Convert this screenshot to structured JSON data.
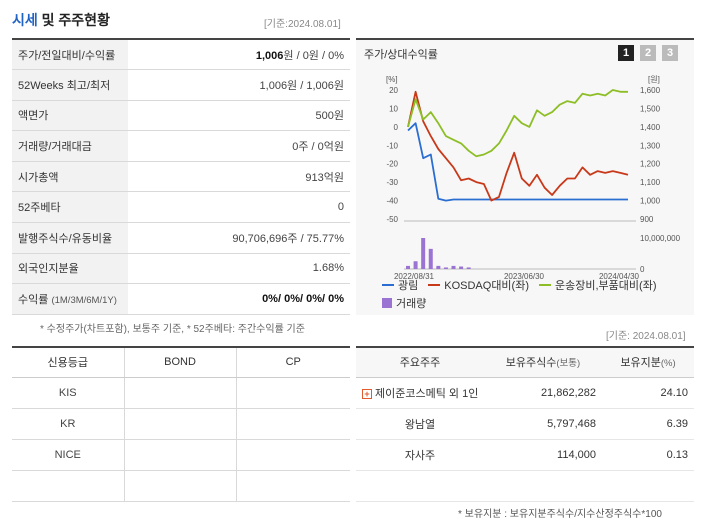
{
  "section": {
    "title_accent": "시세",
    "title_rest": " 및 주주현황",
    "base_date": "[기준:2024.08.01]"
  },
  "price_rows": [
    {
      "label": "주가/전일대비/수익률",
      "value_bold": "1,006",
      "value_rest": "원 / 0원 / 0%"
    },
    {
      "label": "52Weeks 최고/최저",
      "value_bold": "",
      "value_rest": "1,006원 / 1,006원"
    },
    {
      "label": "액면가",
      "value_bold": "",
      "value_rest": "500원"
    },
    {
      "label": "거래량/거래대금",
      "value_bold": "",
      "value_rest": "0주 / 0억원"
    },
    {
      "label": "시가총액",
      "value_bold": "",
      "value_rest": "913억원"
    },
    {
      "label": "52주베타",
      "value_bold": "",
      "value_rest": "0"
    },
    {
      "label": "발행주식수/유동비율",
      "value_bold": "",
      "value_rest": "90,706,696주 / 75.77%"
    },
    {
      "label": "외국인지분율",
      "value_bold": "",
      "value_rest": "1.68%"
    },
    {
      "label": "수익률",
      "label_small": "(1M/3M/6M/1Y)",
      "value_bold": "0%/ 0%/ 0%/ 0%",
      "value_rest": ""
    }
  ],
  "note_left": "* 수정주가(차트포함), 보통주 기준, * 52주베타: 주간수익률 기준",
  "note_right": "[기준: 2024.08.01]",
  "chart": {
    "title": "주가/상대수익률",
    "tabs": [
      "1",
      "2",
      "3"
    ],
    "active_tab": 0
  },
  "chart_data": {
    "type": "line",
    "left_axis_unit": "[%]",
    "right_axis_unit": "[원]",
    "left_ticks": [
      20,
      10,
      0,
      -10,
      -20,
      -30,
      -40,
      -50
    ],
    "right_ticks": [
      "1,600",
      "1,500",
      "1,400",
      "1,300",
      "1,200",
      "1,100",
      "1,000",
      "900"
    ],
    "volume_ticks": [
      "10,000,000",
      "0"
    ],
    "x_labels": [
      "2022/08/31",
      "2023/06/30",
      "2024/04/30"
    ],
    "ylim_left": [
      -50,
      20
    ],
    "ylim_right": [
      900,
      1600
    ],
    "series": [
      {
        "name": "광림",
        "color": "#2a6ed1",
        "axis": "right",
        "values": [
          1380,
          1420,
          1230,
          1250,
          1010,
          1000,
          1006,
          1006,
          1006,
          1006,
          1006,
          1006,
          1006,
          1006,
          1006,
          1006,
          1006,
          1006,
          1006,
          1006,
          1006,
          1006,
          1006,
          1006,
          1006,
          1006,
          1006,
          1006,
          1006,
          1006
        ]
      },
      {
        "name": "KOSDAQ대비(좌)",
        "color": "#c8391a",
        "axis": "left",
        "values": [
          0,
          19,
          3,
          -5,
          -12,
          -17,
          -22,
          -29,
          -28,
          -30,
          -31,
          -40,
          -38,
          -25,
          -14,
          -28,
          -32,
          -26,
          -33,
          -37,
          -32,
          -28,
          -28,
          -22,
          -26,
          -24,
          -25,
          -24,
          -25,
          -26
        ]
      },
      {
        "name": "운송장비,부품대비(좌)",
        "color": "#8dbe26",
        "axis": "left",
        "values": [
          0,
          15,
          4,
          8,
          2,
          -5,
          -7,
          -9,
          -13,
          -16,
          -15,
          -13,
          -9,
          -2,
          6,
          2,
          0,
          9,
          6,
          8,
          12,
          14,
          13,
          18,
          17,
          18,
          17,
          20,
          19,
          19
        ]
      },
      {
        "name": "거래량",
        "color": "#9b73d3",
        "axis": "volume",
        "values": [
          0.1,
          0.25,
          1.0,
          0.65,
          0.1,
          0.05,
          0.1,
          0.08,
          0.05,
          0,
          0,
          0,
          0,
          0,
          0,
          0,
          0,
          0,
          0,
          0,
          0,
          0,
          0,
          0,
          0,
          0,
          0,
          0,
          0,
          0
        ]
      }
    ]
  },
  "credit": {
    "headers": [
      "신용등급",
      "BOND",
      "CP"
    ],
    "rows": [
      [
        "KIS",
        "",
        ""
      ],
      [
        "KR",
        "",
        ""
      ],
      [
        "NICE",
        "",
        ""
      ],
      [
        "",
        "",
        ""
      ]
    ]
  },
  "holders": {
    "headers": [
      "주요주주",
      "보유주식수",
      "(보통)",
      "보유지분",
      "(%)"
    ],
    "rows": [
      {
        "name": "제이준코스메틱 외 1인",
        "shares": "21,862,282",
        "pct": "24.10",
        "expandable": true
      },
      {
        "name": "왕남열",
        "shares": "5,797,468",
        "pct": "6.39",
        "expandable": false
      },
      {
        "name": "자사주",
        "shares": "114,000",
        "pct": "0.13",
        "expandable": false
      }
    ]
  },
  "note_bottom": "* 보유지분 : 보유지분주식수/지수산정주식수*100",
  "icons": {
    "expand": "plus-icon"
  }
}
